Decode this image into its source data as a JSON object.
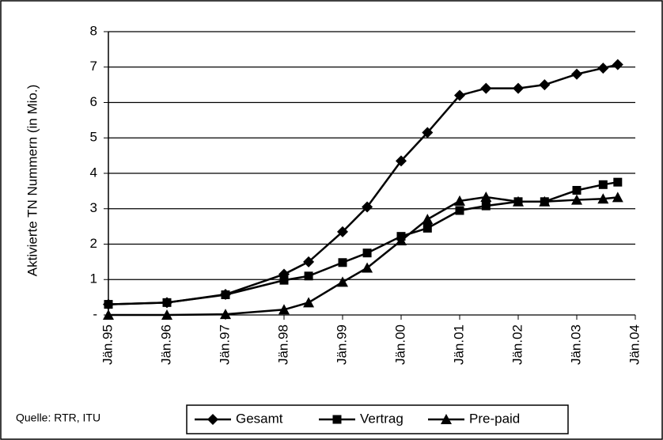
{
  "chart_data": {
    "type": "line",
    "y_label": "Aktivierte TN Nummern (in Mio.)",
    "annotation": "Quelle: RTR, ITU",
    "x": [
      1995,
      1996,
      1997,
      1998,
      1998.42,
      1999,
      1999.42,
      2000,
      2000.45,
      2001,
      2001.45,
      2002,
      2002.45,
      2003,
      2003.45,
      2003.7
    ],
    "series": [
      {
        "name": "Gesamt",
        "color": "#000000",
        "marker": "diamond",
        "values": [
          0.3,
          0.35,
          0.58,
          1.15,
          1.5,
          2.35,
          3.05,
          4.35,
          5.15,
          6.2,
          6.4,
          6.4,
          6.5,
          6.8,
          6.97,
          7.07
        ]
      },
      {
        "name": "Vertrag",
        "color": "#000000",
        "marker": "square",
        "values": [
          0.3,
          0.35,
          0.57,
          0.98,
          1.1,
          1.48,
          1.75,
          2.22,
          2.45,
          2.95,
          3.08,
          3.2,
          3.2,
          3.52,
          3.68,
          3.75
        ]
      },
      {
        "name": "Pre-paid",
        "color": "#000000",
        "marker": "triangle",
        "values": [
          0,
          0,
          0.02,
          0.15,
          0.35,
          0.93,
          1.33,
          2.1,
          2.7,
          3.22,
          3.33,
          3.2,
          3.2,
          3.25,
          3.28,
          3.32
        ]
      }
    ],
    "xlim": [
      1995,
      2004
    ],
    "xticks": [
      {
        "value": 1995,
        "label": "Jän.95"
      },
      {
        "value": 1996,
        "label": "Jän.96"
      },
      {
        "value": 1997,
        "label": "Jän.97"
      },
      {
        "value": 1998,
        "label": "Jän.98"
      },
      {
        "value": 1999,
        "label": "Jän.99"
      },
      {
        "value": 2000,
        "label": "Jän.00"
      },
      {
        "value": 2001,
        "label": "Jän.01"
      },
      {
        "value": 2002,
        "label": "Jän.02"
      },
      {
        "value": 2003,
        "label": "Jän.03"
      },
      {
        "value": 2004,
        "label": "Jän.04"
      }
    ],
    "ylim": [
      0,
      8
    ],
    "yticks": [
      {
        "value": 0,
        "label": "-"
      },
      1,
      2,
      3,
      4,
      5,
      6,
      7,
      8
    ],
    "grid": true,
    "legend": "bottom"
  }
}
